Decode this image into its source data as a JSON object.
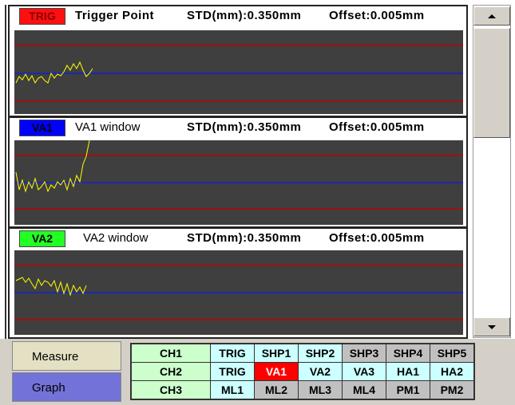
{
  "windows": [
    {
      "tag": "TRIG",
      "title": "Trigger Point",
      "std": "STD(mm):0.350mm",
      "offset": "Offset:0.005mm"
    },
    {
      "tag": "VA1",
      "title": "VA1 window",
      "std": "STD(mm):0.350mm",
      "offset": "Offset:0.005mm"
    },
    {
      "tag": "VA2",
      "title": "VA2 window",
      "std": "STD(mm):0.350mm",
      "offset": "Offset:0.005mm"
    }
  ],
  "buttons": [
    "Measure",
    "Graph"
  ],
  "grid": [
    [
      "CH1",
      "TRIG",
      "SHP1",
      "SHP2",
      "SHP3",
      "SHP4",
      "SHP5"
    ],
    [
      "CH2",
      "TRIG",
      "VA1",
      "VA2",
      "VA3",
      "HA1",
      "HA2"
    ],
    [
      "CH3",
      "ML1",
      "ML2",
      "ML3",
      "ML4",
      "PM1",
      "PM2"
    ]
  ]
}
